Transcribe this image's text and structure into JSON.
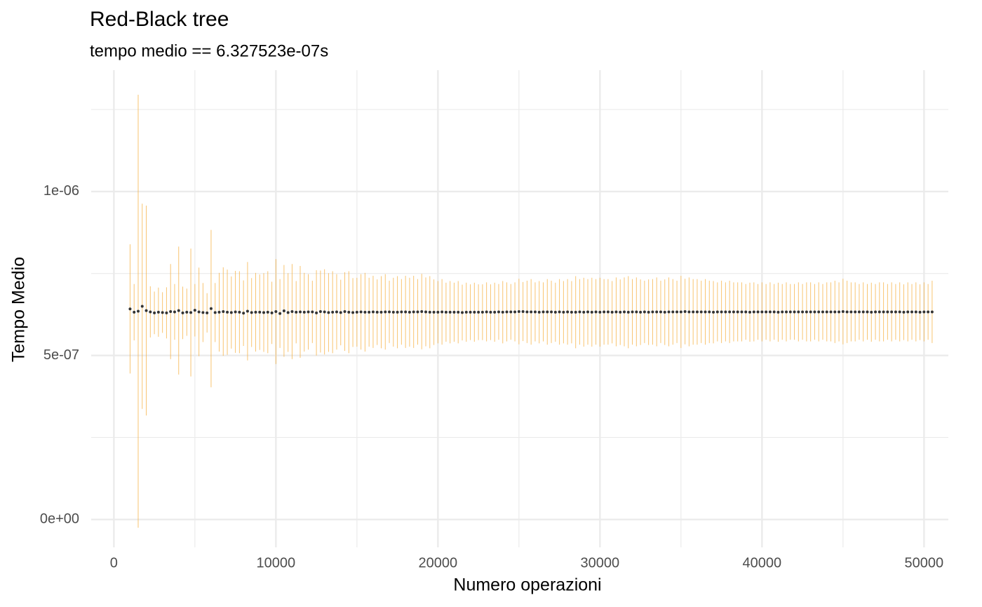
{
  "chart_data": {
    "type": "errorbar",
    "title": "Red-Black tree",
    "subtitle": "tempo medio == 6.327523e-07s",
    "x_label": "Numero operazioni",
    "y_label": "Tempo Medio",
    "color": "#333333",
    "error_color": "#f5b041",
    "grid": true,
    "xlim": [
      -1400,
      51500
    ],
    "ylim": [
      -8.5e-08,
      1.37e-06
    ],
    "xticks": [
      0,
      10000,
      20000,
      30000,
      40000,
      50000
    ],
    "xminorticks": [
      5000,
      15000,
      25000,
      35000,
      45000
    ],
    "yticks": [
      {
        "value": 0,
        "label": "0e+00"
      },
      {
        "value": 5e-07,
        "label": "5e-07"
      },
      {
        "value": 1e-06,
        "label": "1e-06"
      }
    ],
    "yminorticks": [
      2.5e-07,
      7.5e-07,
      1.25e-06
    ],
    "x": [
      1000,
      1250,
      1500,
      1750,
      2000,
      2250,
      2500,
      2750,
      3000,
      3250,
      3500,
      3750,
      4000,
      4250,
      4500,
      4750,
      5000,
      5250,
      5500,
      5750,
      6000,
      6250,
      6500,
      6750,
      7000,
      7250,
      7500,
      7750,
      8000,
      8250,
      8500,
      8750,
      9000,
      9250,
      9500,
      9750,
      10000,
      10250,
      10500,
      10750,
      11000,
      11250,
      11500,
      11750,
      12000,
      12250,
      12500,
      12750,
      13000,
      13250,
      13500,
      13750,
      14000,
      14250,
      14500,
      14750,
      15000,
      15250,
      15500,
      15750,
      16000,
      16250,
      16500,
      16750,
      17000,
      17250,
      17500,
      17750,
      18000,
      18250,
      18500,
      18750,
      19000,
      19250,
      19500,
      19750,
      20000,
      20250,
      20500,
      20750,
      21000,
      21250,
      21500,
      21750,
      22000,
      22250,
      22500,
      22750,
      23000,
      23250,
      23500,
      23750,
      24000,
      24250,
      24500,
      24750,
      25000,
      25250,
      25500,
      25750,
      26000,
      26250,
      26500,
      26750,
      27000,
      27250,
      27500,
      27750,
      28000,
      28250,
      28500,
      28750,
      29000,
      29250,
      29500,
      29750,
      30000,
      30250,
      30500,
      30750,
      31000,
      31250,
      31500,
      31750,
      32000,
      32250,
      32500,
      32750,
      33000,
      33250,
      33500,
      33750,
      34000,
      34250,
      34500,
      34750,
      35000,
      35250,
      35500,
      35750,
      36000,
      36250,
      36500,
      36750,
      37000,
      37250,
      37500,
      37750,
      38000,
      38250,
      38500,
      38750,
      39000,
      39250,
      39500,
      39750,
      40000,
      40250,
      40500,
      40750,
      41000,
      41250,
      41500,
      41750,
      42000,
      42250,
      42500,
      42750,
      43000,
      43250,
      43500,
      43750,
      44000,
      44250,
      44500,
      44750,
      45000,
      45250,
      45500,
      45750,
      46000,
      46250,
      46500,
      46750,
      47000,
      47250,
      47500,
      47750,
      48000,
      48250,
      48500,
      48750,
      49000,
      49250,
      49500,
      49750,
      50000,
      50250,
      50500
    ],
    "values": [
      6.42e-07,
      6.32e-07,
      6.35e-07,
      6.5e-07,
      6.37e-07,
      6.33e-07,
      6.3e-07,
      6.32e-07,
      6.31e-07,
      6.3e-07,
      6.34e-07,
      6.33e-07,
      6.37e-07,
      6.3e-07,
      6.32e-07,
      6.31e-07,
      6.38e-07,
      6.33e-07,
      6.31e-07,
      6.3e-07,
      6.43e-07,
      6.31e-07,
      6.32e-07,
      6.34e-07,
      6.32e-07,
      6.31e-07,
      6.33e-07,
      6.32e-07,
      6.29e-07,
      6.35e-07,
      6.31e-07,
      6.32e-07,
      6.32e-07,
      6.31e-07,
      6.32e-07,
      6.3e-07,
      6.34e-07,
      6.28e-07,
      6.36e-07,
      6.31e-07,
      6.34e-07,
      6.32e-07,
      6.33e-07,
      6.32e-07,
      6.33e-07,
      6.33e-07,
      6.3e-07,
      6.34e-07,
      6.33e-07,
      6.31e-07,
      6.32e-07,
      6.33e-07,
      6.31e-07,
      6.34e-07,
      6.32e-07,
      6.31e-07,
      6.32e-07,
      6.33e-07,
      6.32e-07,
      6.32e-07,
      6.33e-07,
      6.32e-07,
      6.32e-07,
      6.33e-07,
      6.33e-07,
      6.32e-07,
      6.32e-07,
      6.33e-07,
      6.33e-07,
      6.32e-07,
      6.33e-07,
      6.33e-07,
      6.34e-07,
      6.33e-07,
      6.32e-07,
      6.32e-07,
      6.32e-07,
      6.33e-07,
      6.32e-07,
      6.32e-07,
      6.32e-07,
      6.32e-07,
      6.31e-07,
      6.32e-07,
      6.32e-07,
      6.32e-07,
      6.32e-07,
      6.32e-07,
      6.33e-07,
      6.32e-07,
      6.32e-07,
      6.33e-07,
      6.32e-07,
      6.33e-07,
      6.33e-07,
      6.33e-07,
      6.34e-07,
      6.34e-07,
      6.33e-07,
      6.33e-07,
      6.33e-07,
      6.32e-07,
      6.33e-07,
      6.33e-07,
      6.33e-07,
      6.32e-07,
      6.33e-07,
      6.32e-07,
      6.33e-07,
      6.32e-07,
      6.32e-07,
      6.33e-07,
      6.32e-07,
      6.33e-07,
      6.32e-07,
      6.33e-07,
      6.32e-07,
      6.33e-07,
      6.33e-07,
      6.32e-07,
      6.33e-07,
      6.32e-07,
      6.33e-07,
      6.32e-07,
      6.33e-07,
      6.33e-07,
      6.32e-07,
      6.33e-07,
      6.32e-07,
      6.33e-07,
      6.33e-07,
      6.33e-07,
      6.32e-07,
      6.33e-07,
      6.33e-07,
      6.33e-07,
      6.33e-07,
      6.34e-07,
      6.33e-07,
      6.33e-07,
      6.33e-07,
      6.33e-07,
      6.33e-07,
      6.33e-07,
      6.32e-07,
      6.33e-07,
      6.33e-07,
      6.33e-07,
      6.33e-07,
      6.33e-07,
      6.33e-07,
      6.33e-07,
      6.33e-07,
      6.32e-07,
      6.33e-07,
      6.33e-07,
      6.33e-07,
      6.33e-07,
      6.33e-07,
      6.33e-07,
      6.32e-07,
      6.33e-07,
      6.33e-07,
      6.33e-07,
      6.33e-07,
      6.33e-07,
      6.33e-07,
      6.33e-07,
      6.33e-07,
      6.33e-07,
      6.33e-07,
      6.33e-07,
      6.33e-07,
      6.33e-07,
      6.33e-07,
      6.33e-07,
      6.34e-07,
      6.33e-07,
      6.33e-07,
      6.33e-07,
      6.33e-07,
      6.33e-07,
      6.33e-07,
      6.32e-07,
      6.33e-07,
      6.33e-07,
      6.33e-07,
      6.33e-07,
      6.33e-07,
      6.33e-07,
      6.33e-07,
      6.32e-07,
      6.33e-07,
      6.33e-07,
      6.33e-07,
      6.32e-07,
      6.33e-07,
      6.33e-07,
      6.33e-07
    ],
    "errors": [
      1.97e-07,
      8.6e-08,
      6.6e-07,
      3.13e-07,
      3.2e-07,
      7.8e-08,
      6.5e-08,
      7.5e-08,
      6.2e-08,
      7.8e-08,
      1.45e-07,
      8.5e-08,
      1.95e-07,
      8e-08,
      7.2e-08,
      1.95e-07,
      8e-08,
      1.35e-07,
      9e-08,
      6e-08,
      2.4e-07,
      9e-08,
      1.2e-07,
      1.35e-07,
      1.3e-07,
      1.1e-07,
      1.25e-07,
      1.25e-07,
      1e-07,
      1.5e-07,
      1.05e-07,
      1.2e-07,
      1.15e-07,
      1.2e-07,
      1.25e-07,
      9.5e-08,
      1.6e-07,
      1.05e-07,
      1.4e-07,
      1.2e-07,
      1.45e-07,
      9.5e-08,
      1.4e-07,
      1.2e-07,
      1.15e-07,
      9.5e-08,
      1.3e-07,
      1.25e-07,
      1.3e-07,
      1.2e-07,
      1.25e-07,
      1.15e-07,
      1e-07,
      1.2e-07,
      1.25e-07,
      1.05e-07,
      1.05e-07,
      1.15e-07,
      1.2e-07,
      1.05e-07,
      1.1e-07,
      1e-07,
      1.1e-07,
      1.15e-07,
      9.5e-08,
      1.05e-07,
      1.1e-07,
      1e-07,
      1.1e-07,
      1.05e-07,
      1.1e-07,
      1e-07,
      1.15e-07,
      1.05e-07,
      1.1e-07,
      1e-07,
      9.5e-08,
      1e-07,
      9e-08,
      9.5e-08,
      9e-08,
      9.5e-08,
      8.5e-08,
      9e-08,
      8.5e-08,
      9e-08,
      8.5e-08,
      8.5e-08,
      9e-08,
      8.5e-08,
      9e-08,
      8.5e-08,
      9.5e-08,
      9e-08,
      8.5e-08,
      9e-08,
      1e-07,
      9e-08,
      9.5e-08,
      1e-07,
      9e-08,
      9.5e-08,
      9e-08,
      1e-07,
      9.5e-08,
      9e-08,
      1e-07,
      9.5e-08,
      1e-07,
      9.5e-08,
      1.1e-07,
      1e-07,
      1.05e-07,
      1e-07,
      1.05e-07,
      1e-07,
      1.05e-07,
      1e-07,
      1e-07,
      9.5e-08,
      1.05e-07,
      1e-07,
      1.05e-07,
      1.1e-07,
      1e-07,
      1.05e-07,
      1e-07,
      9.5e-08,
      1e-07,
      1e-07,
      1.05e-07,
      9.5e-08,
      1e-07,
      1.05e-07,
      1e-07,
      9.5e-08,
      1.1e-07,
      1e-07,
      1.05e-07,
      1e-07,
      1e-07,
      9.5e-08,
      1e-07,
      9.5e-08,
      9.5e-08,
      9e-08,
      9.5e-08,
      9e-08,
      9.5e-08,
      9e-08,
      9e-08,
      9e-08,
      8.5e-08,
      9e-08,
      9e-08,
      8.5e-08,
      9e-08,
      8.5e-08,
      9e-08,
      8.5e-08,
      9e-08,
      8.5e-08,
      9e-08,
      8.5e-08,
      8.5e-08,
      9e-08,
      8.5e-08,
      9e-08,
      9e-08,
      8.5e-08,
      9e-08,
      8.5e-08,
      9e-08,
      9e-08,
      9.5e-08,
      9e-08,
      1e-07,
      9.5e-08,
      9e-08,
      9e-08,
      8.5e-08,
      9e-08,
      8.5e-08,
      9e-08,
      8.5e-08,
      9e-08,
      9e-08,
      8.5e-08,
      9e-08,
      8.5e-08,
      9e-08,
      8.5e-08,
      9e-08,
      8.5e-08,
      9e-08,
      8.5e-08,
      9e-08,
      8.5e-08,
      9.5e-08
    ]
  }
}
